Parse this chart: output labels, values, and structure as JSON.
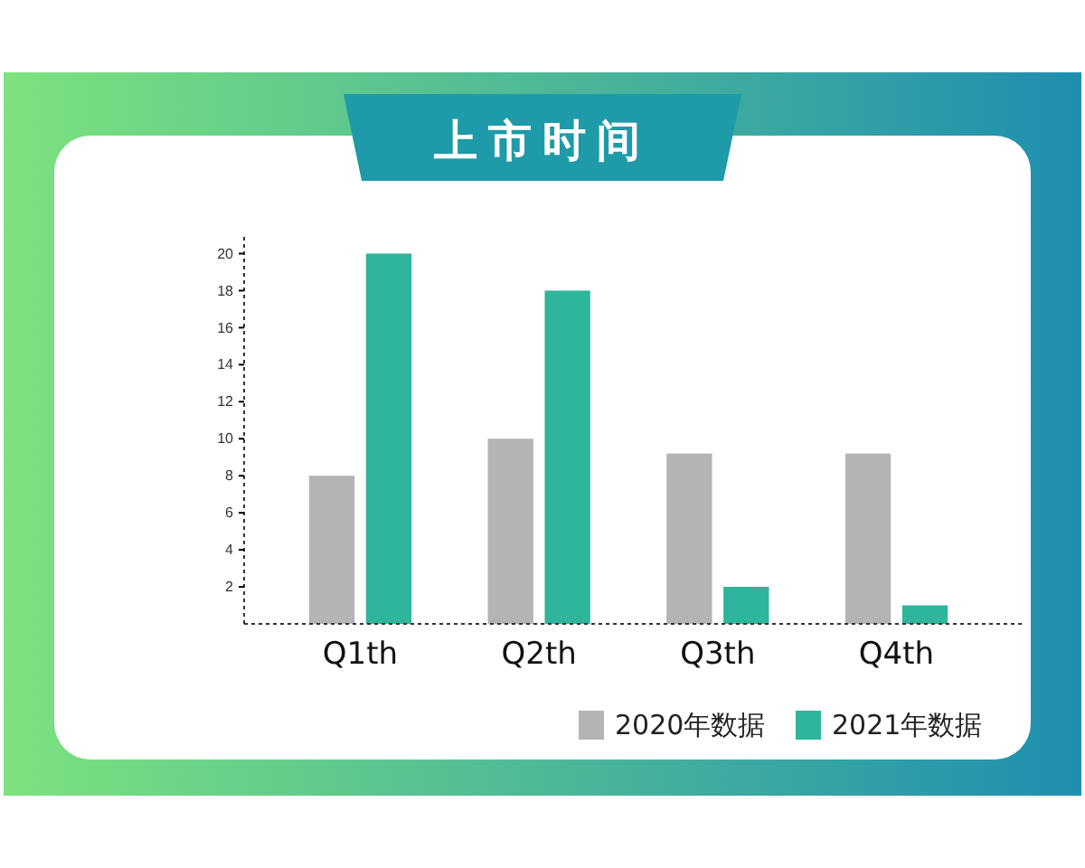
{
  "chart_data": {
    "type": "bar",
    "title": "上市时间",
    "categories": [
      "Q1th",
      "Q2th",
      "Q3th",
      "Q4th"
    ],
    "series": [
      {
        "name": "2020年数据",
        "color": "#b4b4b4",
        "values": [
          8,
          10,
          9.2,
          9.2
        ]
      },
      {
        "name": "2021年数据",
        "color": "#2eb59b",
        "values": [
          20,
          18,
          2,
          1
        ]
      }
    ],
    "ylim": [
      0,
      21
    ],
    "yticks": [
      2,
      4,
      6,
      8,
      10,
      12,
      14,
      16,
      18,
      20
    ],
    "grid": false,
    "legend": "bottom right"
  }
}
